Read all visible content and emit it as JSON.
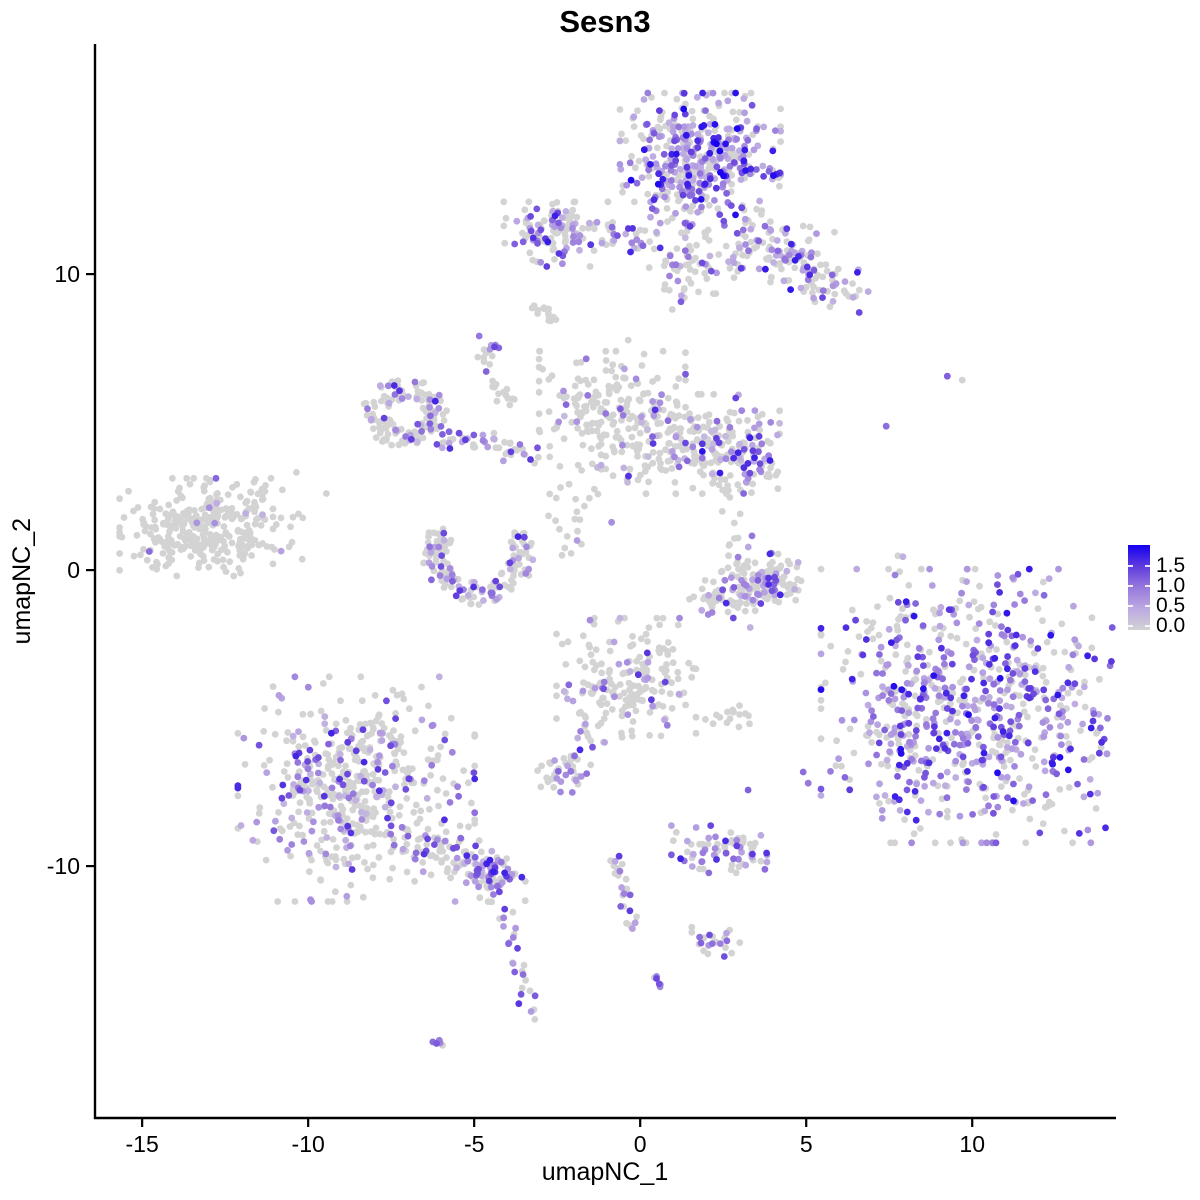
{
  "title": "Sesn3",
  "axes": {
    "x": {
      "label": "umapNC_1",
      "ticks": [
        -15,
        -10,
        -5,
        0,
        5,
        10
      ]
    },
    "y": {
      "label": "umapNC_2",
      "ticks": [
        10,
        0,
        -10
      ]
    }
  },
  "legend": {
    "tick_labels": [
      "1.5",
      "1.0",
      "0.5",
      "0.0"
    ]
  },
  "colors": {
    "background": "#FFFFFF",
    "axis": "#000000",
    "low": "#D3D3D3",
    "high": "#1400F0",
    "gradient_stops": [
      "#D3D3D3",
      "#BCA9E2",
      "#9779DC",
      "#5F3BDE",
      "#1400F0"
    ]
  },
  "chart_data": {
    "type": "scatter",
    "title": "Sesn3",
    "xlabel": "umapNC_1",
    "ylabel": "umapNC_2",
    "x_domain": [
      -16.42,
      14.3
    ],
    "y_domain": [
      -18.51,
      17.74
    ],
    "colorbar_range": [
      0.0,
      1.5
    ],
    "point_radius": 3.4,
    "seed": 42,
    "clusters": [
      {
        "name": "top-main",
        "shape": "gauss",
        "cx": 1.81,
        "cy": 13.92,
        "sx": 1.1,
        "sy": 1.0,
        "clip": 2.2,
        "n": 430,
        "frac": 0.58,
        "tlo": 0.22,
        "thi": 1.0,
        "pow": 2.2
      },
      {
        "name": "top-arm",
        "shape": "line",
        "x1": 3.01,
        "y1": 11.66,
        "x2": 6.17,
        "y2": 9.19,
        "jit": 0.55,
        "n": 150,
        "frac": 0.45,
        "tlo": 0.2,
        "thi": 0.95,
        "pow": 1.8
      },
      {
        "name": "top-tail",
        "shape": "line",
        "x1": 1.08,
        "y1": 12.77,
        "x2": 1.45,
        "y2": 9.12,
        "jit": 0.3,
        "n": 40,
        "frac": 0.3,
        "tlo": 0.2,
        "thi": 0.8,
        "pow": 1.5
      },
      {
        "name": "top-spread",
        "shape": "gauss",
        "cx": 1.87,
        "cy": 10.74,
        "sx": 0.8,
        "sy": 0.7,
        "clip": 2.0,
        "n": 50,
        "frac": 0.3,
        "tlo": 0.15,
        "thi": 0.75,
        "pow": 1.5
      },
      {
        "name": "top-left-sub",
        "shape": "gauss",
        "cx": -2.47,
        "cy": 11.35,
        "sx": 0.78,
        "sy": 0.52,
        "clip": 2.1,
        "n": 125,
        "frac": 0.42,
        "tlo": 0.2,
        "thi": 0.92,
        "pow": 1.7
      },
      {
        "name": "top-bridge",
        "shape": "line",
        "x1": -1.27,
        "y1": 11.45,
        "x2": 0.57,
        "y2": 10.91,
        "jit": 0.22,
        "n": 26,
        "frac": 0.5,
        "tlo": 0.2,
        "thi": 0.85,
        "pow": 1.6
      },
      {
        "name": "grey-smudge",
        "shape": "line",
        "x1": -3.19,
        "y1": 8.92,
        "x2": -2.53,
        "y2": 8.45,
        "jit": 0.12,
        "n": 13,
        "frac": 0.04,
        "tlo": 0.2,
        "thi": 0.5,
        "pow": 1.5
      },
      {
        "name": "purple-clump-upper",
        "shape": "gauss",
        "cx": -4.55,
        "cy": 7.33,
        "sx": 0.17,
        "sy": 0.4,
        "clip": 2.0,
        "n": 14,
        "frac": 0.7,
        "tlo": 0.3,
        "thi": 0.8,
        "pow": 1.4
      },
      {
        "name": "mid-left-ring",
        "shape": "arc",
        "cx": -7.05,
        "cy": 5.3,
        "r": 0.95,
        "w": 0.4,
        "a1": 0,
        "a2": 360,
        "ey": 0.85,
        "n": 135,
        "frac": 0.27,
        "tlo": 0.15,
        "thi": 0.85,
        "pow": 1.6
      },
      {
        "name": "ring-chain",
        "shape": "line",
        "x1": -6.02,
        "y1": 4.49,
        "x2": -3.25,
        "y2": 3.99,
        "jit": 0.21,
        "n": 45,
        "frac": 0.48,
        "tlo": 0.2,
        "thi": 0.85,
        "pow": 1.6
      },
      {
        "name": "strand-up",
        "shape": "line",
        "x1": -4.31,
        "y1": 6.42,
        "x2": -3.86,
        "y2": 5.2,
        "jit": 0.12,
        "n": 13,
        "frac": 0.12,
        "tlo": 0.2,
        "thi": 0.6,
        "pow": 1.5
      },
      {
        "name": "central-left",
        "shape": "gauss",
        "cx": -0.84,
        "cy": 5.61,
        "sx": 1.05,
        "sy": 0.85,
        "clip": 2.1,
        "n": 175,
        "frac": 0.13,
        "tlo": 0.15,
        "thi": 0.7,
        "pow": 1.4
      },
      {
        "name": "central-right",
        "shape": "gauss",
        "cx": 1.51,
        "cy": 4.26,
        "sx": 1.28,
        "sy": 0.8,
        "clip": 2.1,
        "n": 215,
        "frac": 0.2,
        "tlo": 0.15,
        "thi": 0.8,
        "pow": 1.6
      },
      {
        "name": "central-right-edge",
        "shape": "gauss",
        "cx": 3.07,
        "cy": 3.89,
        "sx": 0.6,
        "sy": 0.75,
        "clip": 2.0,
        "n": 70,
        "frac": 0.5,
        "tlo": 0.25,
        "thi": 0.92,
        "pow": 1.6
      },
      {
        "name": "central-bridge-down",
        "shape": "gauss",
        "cx": -1.87,
        "cy": 2.2,
        "sx": 0.6,
        "sy": 0.95,
        "clip": 2.0,
        "n": 30,
        "frac": 0.15,
        "tlo": 0.15,
        "thi": 0.6,
        "pow": 1.5
      },
      {
        "name": "crescent",
        "shape": "arc",
        "cx": -4.88,
        "cy": 0.51,
        "r": 1.3,
        "w": 0.38,
        "a1": 140,
        "a2": 395,
        "ey": 1.0,
        "n": 150,
        "frac": 0.3,
        "tlo": 0.18,
        "thi": 0.85,
        "pow": 1.6
      },
      {
        "name": "far-left",
        "shape": "gauss",
        "cx": -13.37,
        "cy": 1.45,
        "sx": 1.05,
        "sy": 0.75,
        "clip": 2.2,
        "n": 300,
        "frac": 0.025,
        "tlo": 0.2,
        "thi": 0.6,
        "pow": 1.5
      },
      {
        "name": "far-left-halo",
        "shape": "gauss",
        "cx": -11.25,
        "cy": 1.6,
        "sx": 0.9,
        "sy": 0.85,
        "clip": 2.0,
        "n": 35,
        "frac": 0.06,
        "tlo": 0.2,
        "thi": 0.6,
        "pow": 1.5
      },
      {
        "name": "banana",
        "shape": "line",
        "x1": 1.9,
        "y1": -1.05,
        "x2": 4.31,
        "y2": -0.1,
        "jit": 0.38,
        "n": 135,
        "frac": 0.3,
        "tlo": 0.2,
        "thi": 0.85,
        "pow": 1.6
      },
      {
        "name": "banana-right-blob",
        "shape": "gauss",
        "cx": 3.86,
        "cy": -0.44,
        "sx": 0.45,
        "sy": 0.35,
        "clip": 2.0,
        "n": 40,
        "frac": 0.35,
        "tlo": 0.2,
        "thi": 0.85,
        "pow": 1.6
      },
      {
        "name": "banana-top-sparse",
        "shape": "gauss",
        "cx": 2.86,
        "cy": 0.81,
        "sx": 0.35,
        "sy": 0.6,
        "clip": 2.0,
        "n": 16,
        "frac": 0.2,
        "tlo": 0.2,
        "thi": 0.7,
        "pow": 1.5
      },
      {
        "name": "right-sparse-col",
        "shape": "line",
        "x1": 7.77,
        "y1": 0.74,
        "x2": 7.98,
        "y2": -1.96,
        "jit": 0.18,
        "n": 10,
        "frac": 0.45,
        "tlo": 0.2,
        "thi": 0.7,
        "pow": 1.5
      },
      {
        "name": "center-bottom",
        "shape": "gauss",
        "cx": -0.42,
        "cy": -3.72,
        "sx": 1.0,
        "sy": 1.0,
        "clip": 2.1,
        "n": 190,
        "frac": 0.13,
        "tlo": 0.18,
        "thi": 0.8,
        "pow": 1.6
      },
      {
        "name": "cb-strand",
        "shape": "line",
        "x1": -1.78,
        "y1": -4.83,
        "x2": -1.45,
        "y2": -6.15,
        "jit": 0.1,
        "n": 12,
        "frac": 0.3,
        "tlo": 0.2,
        "thi": 0.7,
        "pow": 1.5
      },
      {
        "name": "grey-clump-right",
        "shape": "gauss",
        "cx": 2.74,
        "cy": -4.97,
        "sx": 0.42,
        "sy": 0.2,
        "clip": 2.0,
        "n": 16,
        "frac": 0.06,
        "tlo": 0.2,
        "thi": 0.5,
        "pow": 1.5
      },
      {
        "name": "small-mixed-clump",
        "shape": "gauss",
        "cx": -2.29,
        "cy": -6.79,
        "sx": 0.4,
        "sy": 0.36,
        "clip": 2.0,
        "n": 42,
        "frac": 0.45,
        "tlo": 0.25,
        "thi": 0.85,
        "pow": 1.5
      },
      {
        "name": "bottom-left-main",
        "shape": "gauss",
        "cx": -8.55,
        "cy": -7.4,
        "sx": 1.55,
        "sy": 1.65,
        "clip": 2.3,
        "n": 520,
        "frac": 0.27,
        "tlo": 0.18,
        "thi": 0.85,
        "pow": 1.7
      },
      {
        "name": "bl-tail",
        "shape": "line",
        "x1": -6.48,
        "y1": -9.29,
        "x2": -4.07,
        "y2": -10.54,
        "jit": 0.4,
        "n": 95,
        "frac": 0.35,
        "tlo": 0.2,
        "thi": 0.85,
        "pow": 1.6
      },
      {
        "name": "bl-tail-end",
        "shape": "gauss",
        "cx": -4.46,
        "cy": -10.24,
        "sx": 0.42,
        "sy": 0.36,
        "clip": 2.0,
        "n": 45,
        "frac": 0.55,
        "tlo": 0.3,
        "thi": 0.9,
        "pow": 1.4
      },
      {
        "name": "tail-strand",
        "shape": "line",
        "x1": -4.16,
        "y1": -11.35,
        "x2": -3.22,
        "y2": -15.2,
        "jit": 0.12,
        "n": 26,
        "frac": 0.55,
        "tlo": 0.3,
        "thi": 0.85,
        "pow": 1.4
      },
      {
        "name": "tiny-dash-left",
        "shape": "line",
        "x1": -6.2,
        "y1": -15.88,
        "x2": -5.75,
        "y2": -16.08,
        "jit": 0.06,
        "n": 5,
        "frac": 0.85,
        "tlo": 0.35,
        "thi": 0.7,
        "pow": 1.4
      },
      {
        "name": "bottom-small",
        "shape": "gauss",
        "cx": 2.38,
        "cy": -9.43,
        "sx": 0.72,
        "sy": 0.4,
        "clip": 2.0,
        "n": 75,
        "frac": 0.45,
        "tlo": 0.25,
        "thi": 0.88,
        "pow": 1.5
      },
      {
        "name": "center-strand",
        "shape": "line",
        "x1": -0.84,
        "y1": -9.53,
        "x2": -0.12,
        "y2": -12.09,
        "jit": 0.14,
        "n": 26,
        "frac": 0.4,
        "tlo": 0.25,
        "thi": 0.8,
        "pow": 1.5
      },
      {
        "name": "center-dash",
        "shape": "line",
        "x1": 0.45,
        "y1": -13.61,
        "x2": 0.63,
        "y2": -14.12,
        "jit": 0.06,
        "n": 6,
        "frac": 0.85,
        "tlo": 0.4,
        "thi": 0.8,
        "pow": 1.4
      },
      {
        "name": "clump-right-bottom",
        "shape": "gauss",
        "cx": 2.2,
        "cy": -12.53,
        "sx": 0.4,
        "sy": 0.3,
        "clip": 2.0,
        "n": 22,
        "frac": 0.35,
        "tlo": 0.25,
        "thi": 0.8,
        "pow": 1.5
      },
      {
        "name": "right-big",
        "shape": "gauss",
        "cx": 10.39,
        "cy": -4.59,
        "sx": 2.3,
        "sy": 2.15,
        "clip": 2.15,
        "n": 720,
        "frac": 0.62,
        "tlo": 0.22,
        "thi": 0.95,
        "pow": 1.7
      },
      {
        "name": "right-big-left-hook",
        "shape": "gauss",
        "cx": 7.86,
        "cy": -5.51,
        "sx": 0.5,
        "sy": 1.15,
        "clip": 2.0,
        "n": 55,
        "frac": 0.55,
        "tlo": 0.25,
        "thi": 0.95,
        "pow": 1.7
      }
    ],
    "singles": [
      {
        "x": 3.25,
        "y": -7.43,
        "t": 0.6
      },
      {
        "x": 4.91,
        "y": -6.82,
        "t": 0.55
      },
      {
        "x": 5.06,
        "y": -7.2,
        "t": 0.5
      },
      {
        "x": 7.41,
        "y": 4.86,
        "t": 0.55
      },
      {
        "x": 9.25,
        "y": 6.55,
        "t": 0.6
      },
      {
        "x": 9.7,
        "y": 6.42,
        "t": 0
      },
      {
        "x": 9.13,
        "y": -1.96,
        "t": 0
      },
      {
        "x": -0.36,
        "y": 7.77,
        "t": 0
      }
    ]
  }
}
